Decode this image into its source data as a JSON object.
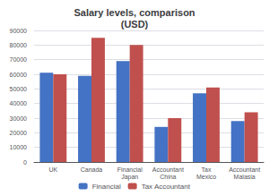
{
  "chart_data": {
    "type": "bar",
    "title": "Salary levels, comparison\n(USD)",
    "categories": [
      "UK",
      "Canada",
      "Financial\nJapan",
      "Accountant\nChina",
      "Tax\nMexico",
      "Accountant\nMalasia"
    ],
    "series": [
      {
        "name": "Financial",
        "color": "#4472C4",
        "values": [
          61000,
          59000,
          69000,
          24000,
          47000,
          28000
        ]
      },
      {
        "name": "Tax Accountant",
        "color": "#C0504D",
        "values": [
          60000,
          85000,
          80000,
          30000,
          51000,
          34000
        ]
      }
    ],
    "ylim": [
      0,
      90000
    ],
    "yticks": [
      0,
      10000,
      20000,
      30000,
      40000,
      50000,
      60000,
      70000,
      80000,
      90000
    ],
    "grid": true,
    "legend": "bottom"
  }
}
